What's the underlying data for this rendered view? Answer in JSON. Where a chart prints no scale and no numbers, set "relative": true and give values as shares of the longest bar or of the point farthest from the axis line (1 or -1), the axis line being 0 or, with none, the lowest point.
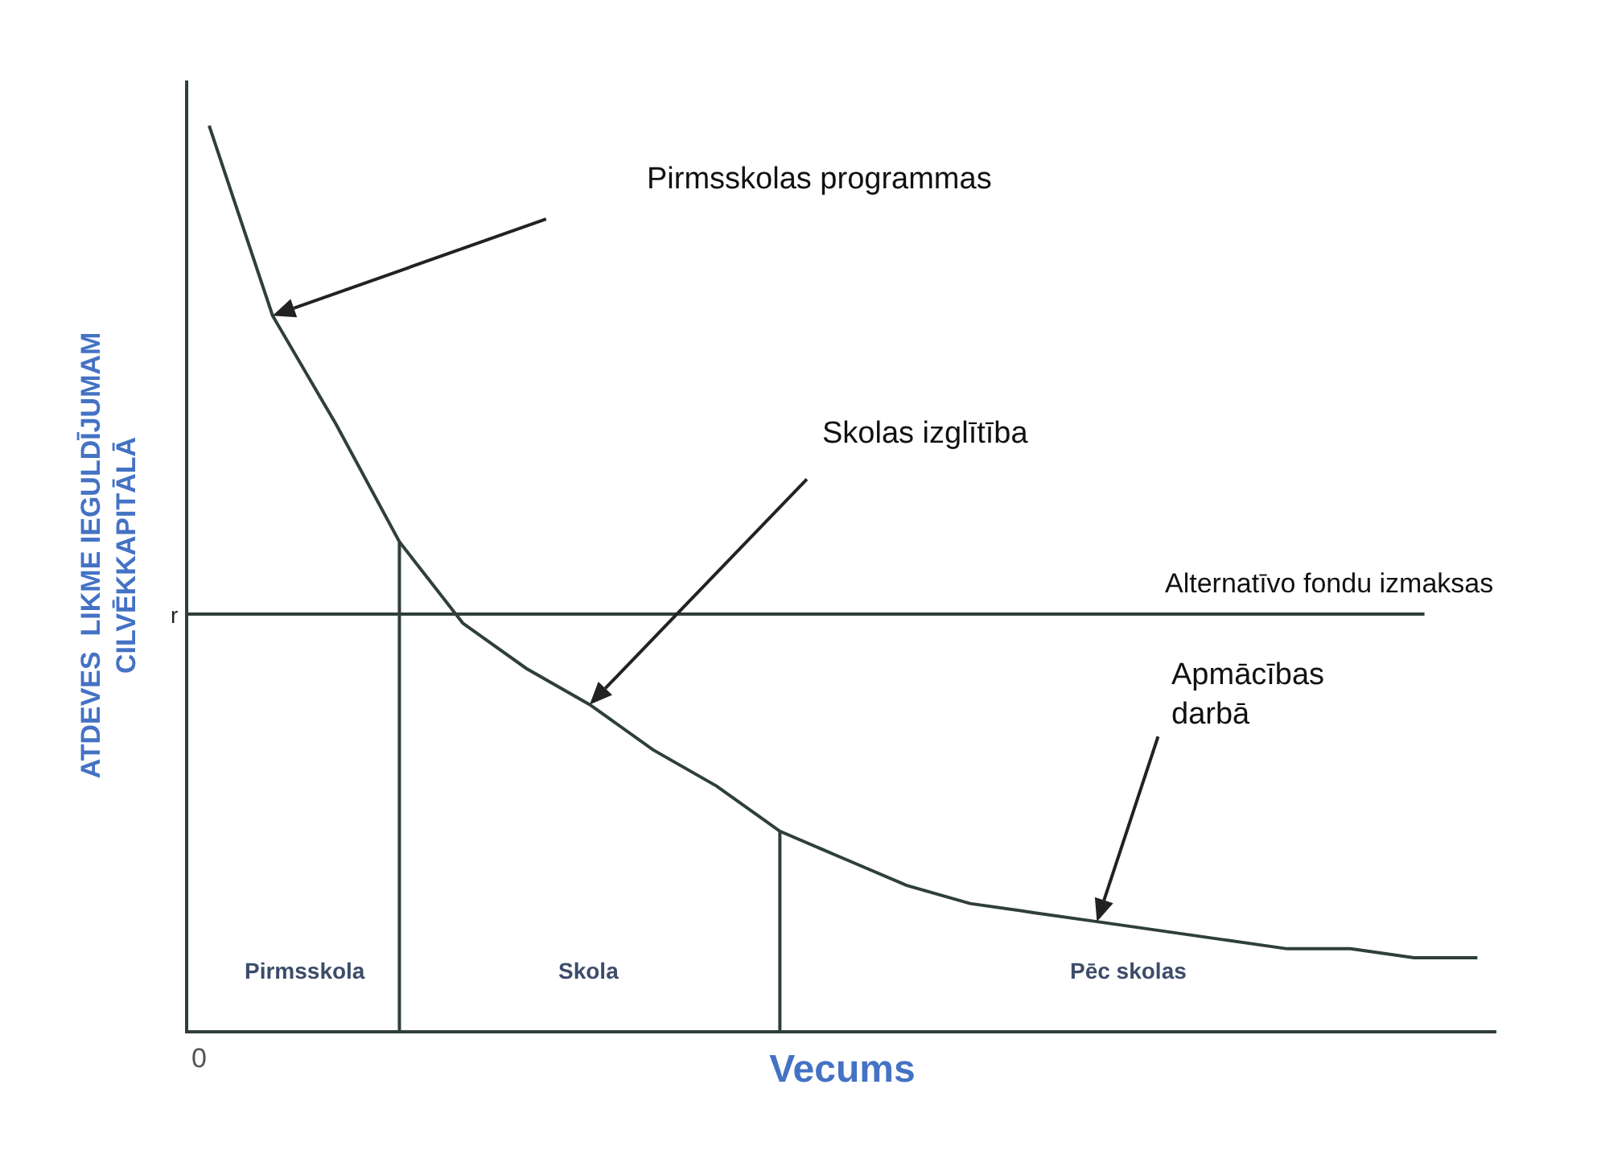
{
  "chart_data": {
    "type": "line",
    "relative": true,
    "xlabel": "Vecums",
    "ylabel": "ATDEVES  LIKME IEGULDĪJUMAM\nCILVĒKKAPITĀLĀ",
    "categories": [
      null,
      null,
      null,
      null,
      null,
      null,
      null,
      null,
      null,
      null,
      null,
      null,
      null,
      null,
      null,
      null,
      null,
      null,
      null,
      null,
      null
    ],
    "series": [
      {
        "color": "#2f3f3a",
        "values": [
          1,
          0.79,
          0.67,
          0.54,
          0.45,
          0.4,
          0.36,
          0.31,
          0.27,
          0.22,
          0.19,
          0.16,
          0.14,
          0.13,
          0.12,
          0.11,
          0.1,
          0.09,
          0.09,
          0.08,
          0.08
        ]
      }
    ],
    "ref_lines": [
      {
        "axis": "y",
        "value": 0.46,
        "label": "r",
        "color": "#2f3f3a"
      }
    ],
    "annotations": [
      "Pirmsskolas programmas",
      "Skolas izglītība",
      "Alternatīvo fondu izmaksas",
      "Apmācības\ndarbā",
      "0",
      "Pirmsskola",
      "Skola",
      "Pēc skolas"
    ],
    "grid": false,
    "marker": "none",
    "line_style": "solid"
  }
}
